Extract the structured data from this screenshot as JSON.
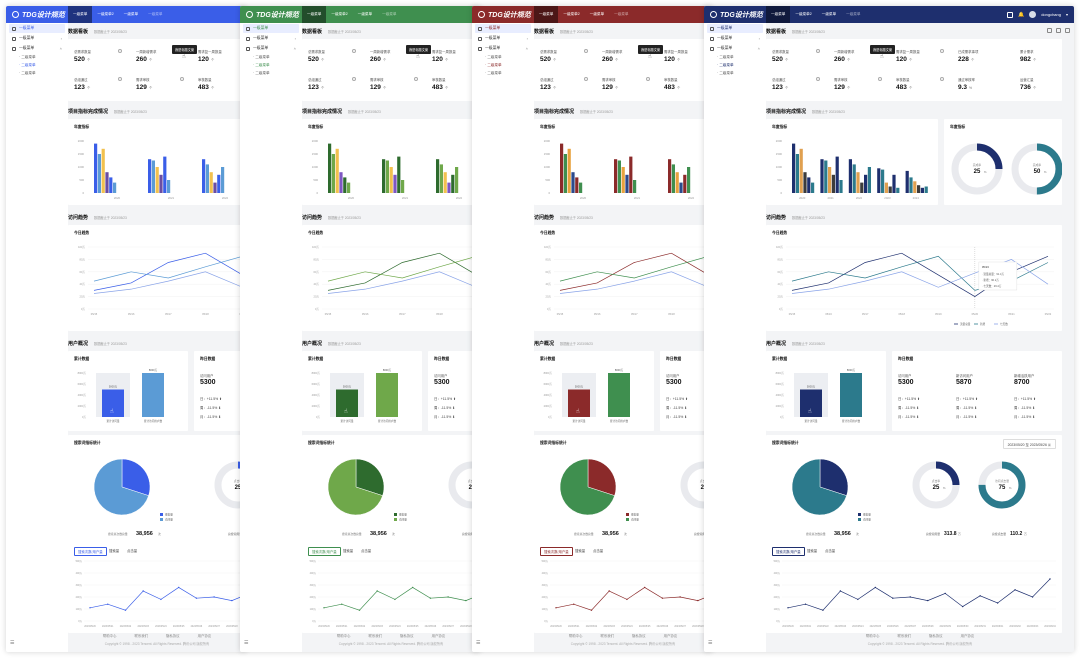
{
  "brand": "TDG设计规范",
  "user_name": "dongchang",
  "tabs": [
    "一级菜单",
    "一级菜单2",
    "一级菜单",
    "一级菜单"
  ],
  "sidebar": {
    "items": [
      "一级菜单",
      "一级菜单",
      "一级菜单"
    ],
    "subs": [
      "二级菜单",
      "二级菜单",
      "二级菜单"
    ],
    "foot": "☰"
  },
  "sections": {
    "dashboard": {
      "title": "数据看板",
      "note": "数据截止于 2023/05/23"
    },
    "project": {
      "title": "项目指标完成情况",
      "note": "数据截止于 2023/05/23"
    },
    "visits": {
      "title": "访问趋势",
      "note": "数据截止于 2023/05/23"
    },
    "users": {
      "title": "用户概况",
      "note": "数据截止于 2023/05/23"
    },
    "search": {
      "title": "搜索词指标统计"
    }
  },
  "tooltip_text": "我是标题文案",
  "metrics": [
    {
      "label": "总需求数量",
      "value": "520",
      "unit": "个"
    },
    {
      "label": "一周新增需求",
      "value": "260",
      "unit": "个"
    },
    {
      "label": "需求复一周数量",
      "value": "120",
      "unit": "个"
    },
    {
      "label": "已成需求事项",
      "value": "228",
      "unit": "个"
    },
    {
      "label": "累计需求",
      "value": "982",
      "unit": "个"
    },
    {
      "label": "总组通过",
      "value": "123",
      "unit": "个"
    },
    {
      "label": "需求审核",
      "value": "129",
      "unit": "个"
    },
    {
      "label": "审核数量",
      "value": "483",
      "unit": "个"
    },
    {
      "label": "通过审核率",
      "value": "9.3",
      "unit": "%"
    },
    {
      "label": "运营汇量",
      "value": "736",
      "unit": "个"
    }
  ],
  "annual": {
    "title": "年度指标",
    "years": [
      "2020",
      "2021",
      "2022",
      "2023",
      "2024"
    ],
    "yticks": [
      "2000",
      "1500",
      "1000",
      "500",
      "0"
    ],
    "side_title": "年度指标",
    "donuts": [
      {
        "label": "完成率",
        "value": "25",
        "unit": "%",
        "pct": 25
      },
      {
        "label": "完成率",
        "value": "50",
        "unit": "%",
        "pct": 50
      }
    ]
  },
  "trend": {
    "title": "今日趋势",
    "yticks": [
      "100万",
      "80万",
      "60万",
      "40万",
      "20万",
      "0万"
    ],
    "xticks": [
      "05/15",
      "05/16",
      "05/17",
      "05/18",
      "05/19",
      "05/20",
      "05/21",
      "05/22"
    ],
    "legend": [
      "流量总量",
      "新增",
      "七天数"
    ],
    "tip_title": "05/23",
    "tip_rows": [
      "流量总量：91.4万",
      "新增：90.2万",
      "七天数：29.4万"
    ]
  },
  "user_summary": {
    "title": "累计数据",
    "bars": [
      {
        "label": "累计访问量",
        "value": "5000万"
      },
      {
        "label": "累计访问用户数",
        "value": "8000万"
      }
    ],
    "yticks": [
      "8000万",
      "6000万",
      "4000万",
      "2000万",
      "0万"
    ],
    "today_title": "昨日数据",
    "today": [
      {
        "label": "访问用户",
        "value": "5300",
        "rows": [
          "日：+11.5%",
          "周：-11.5%",
          "月：-11.5%"
        ]
      },
      {
        "label": "新访问用户",
        "value": "5870",
        "rows": [
          "日：+11.5%",
          "周：-11.5%",
          "月：-11.5%"
        ]
      },
      {
        "label": "新增活跃用户",
        "value": "8700",
        "rows": [
          "日：+11.5%",
          "周：-11.5%",
          "月：-11.5%"
        ]
      }
    ]
  },
  "search": {
    "date_from": "2023/05/20",
    "date_sep": "至",
    "date_to": "2023/05/26",
    "pie_total_label": "搜索总次数总量",
    "pie_total": "38,956",
    "pie_unit": "次",
    "pie_legend": [
      "搜索量",
      "访问量"
    ],
    "donuts": [
      {
        "label": "点击率",
        "value": "25",
        "unit": "%",
        "caption": "总搜索用量",
        "caption_val": "313.8",
        "caption_unit": "万",
        "pct": 25
      },
      {
        "label": "访问点击量",
        "value": "75",
        "unit": "%",
        "caption": "总搜点击量",
        "caption_val": "110.2",
        "caption_unit": "万",
        "pct": 75
      }
    ],
    "tabs": [
      "搜索次数/用户量",
      "搜索量",
      "点击量"
    ],
    "yticks": [
      "500万",
      "400万",
      "300万",
      "200万",
      "100万",
      "0万"
    ],
    "xticks": [
      "2023/05/20",
      "2023/05/21",
      "2023/05/22",
      "2023/05/23",
      "2023/05/24",
      "2023/05/25",
      "2023/05/26",
      "2023/05/27",
      "2023/05/28",
      "2023/05/29",
      "2023/05/30",
      "2023/05/31",
      "2023/06/01",
      "2023/06/02",
      "2023/06/03",
      "2023/06/04"
    ]
  },
  "footer": {
    "links": [
      "帮助中心",
      "联系我们",
      "隐私协议",
      "用户协议"
    ],
    "copy": "Copyright © 1998 - 2023 Tencent. All Rights Reserved. 腾讯公司 版权所有"
  },
  "themes": [
    {
      "name": "blue",
      "primary": "#3a5ee8",
      "top": "#3a5ee8",
      "bars": [
        "#3a5ee8",
        "#5b9bd5",
        "#f2c14e",
        "#6b4ea2"
      ]
    },
    {
      "name": "green",
      "primary": "#3f8f4f",
      "top": "#3f8f4f",
      "bars": [
        "#2e6b2e",
        "#6fa84a",
        "#f2c14e",
        "#7e57c2"
      ]
    },
    {
      "name": "red",
      "primary": "#8b2a2a",
      "top": "#8b2a2a",
      "bars": [
        "#8b2a2a",
        "#3f8f4f",
        "#e8a23e",
        "#2c4a8c"
      ]
    },
    {
      "name": "navy",
      "primary": "#1e2f6e",
      "top": "#1e2f6e",
      "bars": [
        "#1e2f6e",
        "#2c7a8c",
        "#e0a050",
        "#3c3c3c"
      ]
    }
  ],
  "chart_data": [
    {
      "type": "bar",
      "title": "年度指标",
      "categories": [
        "2020",
        "2021",
        "2022",
        "2023",
        "2024"
      ],
      "series": [
        {
          "values": [
            1900,
            1300,
            1300,
            950,
            850
          ]
        },
        {
          "values": [
            1500,
            1250,
            1100,
            900,
            600
          ]
        },
        {
          "values": [
            1700,
            1000,
            800,
            400,
            450
          ]
        },
        {
          "values": [
            800,
            700,
            400,
            250,
            300
          ]
        },
        {
          "values": [
            600,
            1400,
            700,
            700,
            200
          ]
        },
        {
          "values": [
            400,
            500,
            1000,
            200,
            250
          ]
        }
      ],
      "ylim": [
        0,
        2000
      ]
    },
    {
      "type": "line",
      "title": "今日趋势",
      "x": [
        "05/15",
        "05/16",
        "05/17",
        "05/18",
        "05/19",
        "05/20",
        "05/21",
        "05/22"
      ],
      "series": [
        {
          "name": "流量总量",
          "values": [
            30,
            42,
            75,
            90,
            55,
            20,
            60,
            85
          ]
        },
        {
          "name": "新增",
          "values": [
            45,
            60,
            50,
            68,
            85,
            30,
            45,
            75
          ]
        },
        {
          "name": "七天数",
          "values": [
            25,
            32,
            45,
            60,
            35,
            58,
            80,
            40
          ]
        }
      ],
      "ylim": [
        0,
        100
      ]
    },
    {
      "type": "bar",
      "title": "累计数据",
      "categories": [
        "累计访问量",
        "累计访问用户数"
      ],
      "values": [
        5000,
        8000
      ],
      "ylim": [
        0,
        8000
      ]
    },
    {
      "type": "pie",
      "categories": [
        "搜索量",
        "访问量"
      ],
      "values": [
        30,
        70
      ]
    },
    {
      "type": "line",
      "x": [
        "2023/05/20",
        "2023/05/21",
        "2023/05/22",
        "2023/05/23",
        "2023/05/24",
        "2023/05/25",
        "2023/05/26",
        "2023/05/27",
        "2023/05/28",
        "2023/05/29",
        "2023/05/30",
        "2023/05/31",
        "2023/06/01",
        "2023/06/02",
        "2023/06/03",
        "2023/06/04"
      ],
      "series": [
        {
          "values": [
            110,
            140,
            90,
            250,
            180,
            280,
            190,
            200,
            170,
            230,
            120,
            210,
            150,
            260,
            200,
            350
          ]
        }
      ],
      "ylim": [
        0,
        500
      ]
    }
  ]
}
